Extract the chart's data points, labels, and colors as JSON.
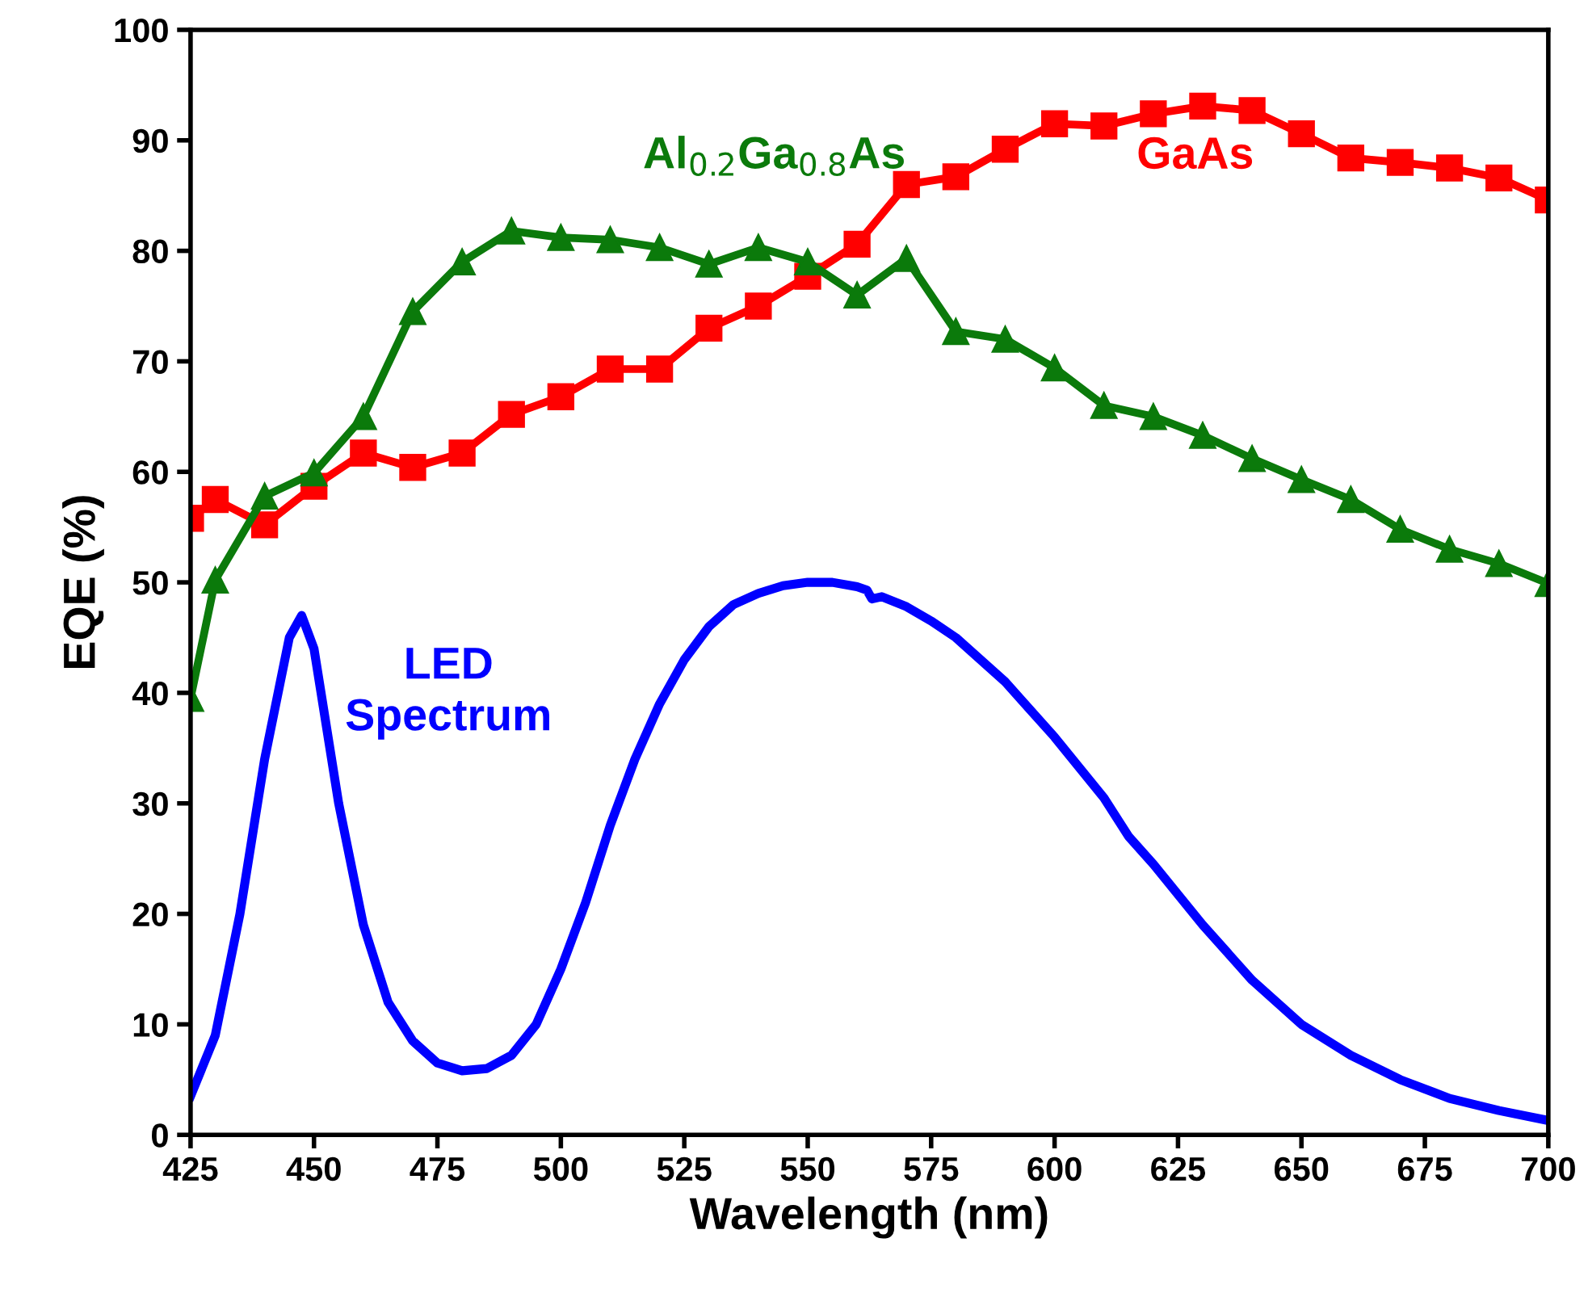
{
  "chart_data": {
    "type": "line",
    "xlabel": "Wavelength (nm)",
    "ylabel": "EQE (%)",
    "xlim": [
      425,
      700
    ],
    "ylim": [
      0,
      100
    ],
    "xticks": [
      425,
      450,
      475,
      500,
      525,
      550,
      575,
      600,
      625,
      650,
      675,
      700
    ],
    "yticks": [
      0,
      10,
      20,
      30,
      40,
      50,
      60,
      70,
      80,
      90,
      100
    ],
    "grid": false,
    "legend": false,
    "series": [
      {
        "name": "GaAs",
        "color": "#ff0000",
        "marker": "square",
        "x": [
          425,
          430,
          440,
          450,
          460,
          470,
          480,
          490,
          500,
          510,
          520,
          530,
          540,
          550,
          560,
          570,
          580,
          590,
          600,
          610,
          620,
          630,
          640,
          650,
          660,
          670,
          680,
          690,
          700
        ],
        "values": [
          55.8,
          57.5,
          55.2,
          58.7,
          61.7,
          60.4,
          61.7,
          65.2,
          66.8,
          69.3,
          69.3,
          73.0,
          75.0,
          77.7,
          80.6,
          86.0,
          86.7,
          89.2,
          91.5,
          91.3,
          92.4,
          93.1,
          92.7,
          90.6,
          88.4,
          88.0,
          87.5,
          86.6,
          84.6
        ]
      },
      {
        "name": "Al$_{0.2}$Ga$_{0.8}$As",
        "color": "#0b7a0b",
        "marker": "triangle",
        "x": [
          425,
          430,
          440,
          450,
          460,
          470,
          480,
          490,
          500,
          510,
          520,
          530,
          540,
          550,
          560,
          570,
          580,
          590,
          600,
          610,
          620,
          630,
          640,
          650,
          660,
          670,
          680,
          690,
          700
        ],
        "values": [
          39.5,
          50.2,
          57.8,
          59.9,
          65.0,
          74.5,
          79.0,
          81.8,
          81.2,
          81.0,
          80.3,
          78.8,
          80.3,
          79.0,
          76.0,
          79.3,
          72.7,
          72.0,
          69.4,
          66.0,
          65.0,
          63.3,
          61.2,
          59.3,
          57.5,
          54.8,
          53.0,
          51.7,
          49.9
        ]
      },
      {
        "name": "LED\nSpectrum",
        "color": "#0000ff",
        "marker": "none",
        "x": [
          425,
          430,
          435,
          440,
          445,
          447.5,
          450,
          455,
          460,
          465,
          470,
          475,
          480,
          485,
          490,
          495,
          500,
          505,
          510,
          515,
          520,
          525,
          530,
          535,
          540,
          545,
          550,
          555,
          560,
          562,
          563,
          565,
          570,
          575,
          580,
          590,
          600,
          610,
          615,
          620,
          630,
          640,
          650,
          660,
          670,
          680,
          690,
          700
        ],
        "values": [
          3.5,
          9,
          20,
          34,
          45,
          47,
          44,
          30,
          19,
          12,
          8.5,
          6.5,
          5.8,
          6.0,
          7.2,
          10,
          15,
          21,
          28,
          34,
          39,
          43,
          46,
          48,
          49,
          49.7,
          50,
          50,
          49.6,
          49.3,
          48.5,
          48.7,
          47.8,
          46.5,
          45,
          41,
          36,
          30.5,
          27,
          24.5,
          19,
          14,
          10,
          7.2,
          5,
          3.3,
          2.2,
          1.3
        ]
      }
    ]
  }
}
